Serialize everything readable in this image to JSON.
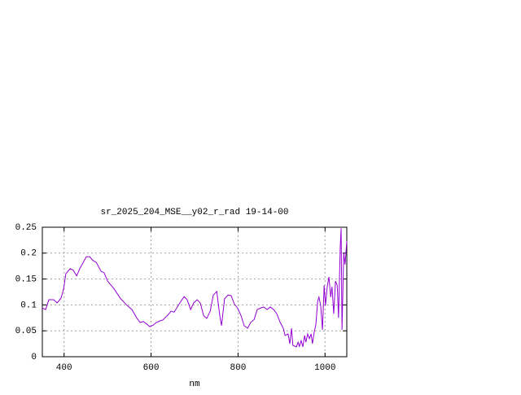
{
  "chart_data": {
    "type": "line",
    "title": "sr_2025_204_MSE__y02_r_rad 19-14-00",
    "x_label": "nm",
    "x": [
      350,
      357.5,
      365,
      376,
      384,
      393,
      399,
      404,
      414,
      421,
      429,
      436,
      444,
      451,
      459,
      466,
      474,
      485,
      492,
      500,
      515,
      530,
      545,
      556,
      567,
      575,
      582,
      590,
      597,
      605,
      612,
      620,
      627,
      638,
      646,
      653,
      664,
      676,
      683,
      691,
      698,
      706,
      713,
      721,
      728,
      736,
      743,
      751,
      758,
      762,
      769,
      777,
      784,
      792,
      799,
      807,
      814,
      822,
      829,
      837,
      844,
      852,
      859,
      867,
      874,
      882,
      889,
      897,
      904,
      908,
      915,
      919,
      923,
      926,
      934,
      938,
      941,
      945,
      949,
      953,
      956,
      960,
      964,
      968,
      971,
      975,
      979,
      983,
      986,
      990,
      994,
      998,
      1001,
      1005,
      1009,
      1013,
      1016,
      1020,
      1024,
      1028,
      1031,
      1035,
      1037,
      1039,
      1043,
      1046,
      1050
    ],
    "series": [
      {
        "color": "#9400d3",
        "values": [
          0.094,
          0.091,
          0.11,
          0.11,
          0.104,
          0.113,
          0.131,
          0.16,
          0.17,
          0.167,
          0.156,
          0.17,
          0.182,
          0.193,
          0.193,
          0.186,
          0.182,
          0.165,
          0.162,
          0.146,
          0.131,
          0.112,
          0.099,
          0.091,
          0.075,
          0.066,
          0.068,
          0.063,
          0.058,
          0.061,
          0.066,
          0.069,
          0.071,
          0.08,
          0.088,
          0.086,
          0.101,
          0.116,
          0.11,
          0.091,
          0.104,
          0.11,
          0.104,
          0.079,
          0.074,
          0.088,
          0.119,
          0.126,
          0.079,
          0.06,
          0.112,
          0.119,
          0.118,
          0.101,
          0.094,
          0.079,
          0.06,
          0.055,
          0.066,
          0.072,
          0.091,
          0.094,
          0.096,
          0.091,
          0.096,
          0.091,
          0.083,
          0.066,
          0.055,
          0.041,
          0.044,
          0.025,
          0.055,
          0.022,
          0.019,
          0.028,
          0.02,
          0.031,
          0.019,
          0.041,
          0.028,
          0.044,
          0.035,
          0.044,
          0.025,
          0.047,
          0.063,
          0.107,
          0.115,
          0.099,
          0.052,
          0.138,
          0.099,
          0.135,
          0.154,
          0.115,
          0.135,
          0.083,
          0.146,
          0.138,
          0.075,
          0.214,
          0.248,
          0.052,
          0.201,
          0.178,
          0.223
        ]
      }
    ],
    "xlim": [
      350,
      1050
    ],
    "xticks": [
      400,
      600,
      800,
      1000
    ],
    "ylim": [
      0,
      0.25
    ],
    "yticks": [
      0,
      0.05,
      0.1,
      0.15,
      0.2,
      0.25
    ],
    "grid": true
  }
}
